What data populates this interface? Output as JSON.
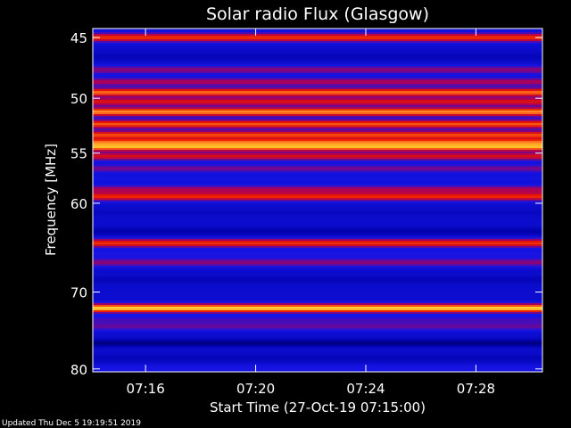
{
  "chart_data": {
    "type": "heatmap",
    "title": "Solar radio Flux (Glasgow)",
    "xlabel": "Start Time (27-Oct-19 07:15:00)",
    "ylabel": "Frequency [MHz]",
    "x_range_minutes": [
      "07:14:05",
      "07:30:25"
    ],
    "xticks": [
      "07:16",
      "07:20",
      "07:24",
      "07:28"
    ],
    "yticks": [
      "45",
      "50",
      "55",
      "60",
      "70",
      "80"
    ],
    "y_scale": "log",
    "ylim": [
      44.3,
      80.4
    ],
    "colormap": "heat (blue-red-orange-yellow-white)",
    "bands": [
      {
        "freq": 45.0,
        "level": 0.7
      },
      {
        "freq": 46.5,
        "level": 0.15
      },
      {
        "freq": 47.6,
        "level": 0.45
      },
      {
        "freq": 48.6,
        "level": 0.5
      },
      {
        "freq": 49.5,
        "level": 0.8
      },
      {
        "freq": 50.3,
        "level": 0.62
      },
      {
        "freq": 51.2,
        "level": 0.86
      },
      {
        "freq": 52.3,
        "level": 0.76
      },
      {
        "freq": 53.3,
        "level": 0.74
      },
      {
        "freq": 54.0,
        "level": 0.78
      },
      {
        "freq": 54.4,
        "level": 0.92
      },
      {
        "freq": 55.3,
        "level": 0.6
      },
      {
        "freq": 56.5,
        "level": 0.42
      },
      {
        "freq": 57.5,
        "level": 0.28
      },
      {
        "freq": 58.6,
        "level": 0.5
      },
      {
        "freq": 59.3,
        "level": 0.68
      },
      {
        "freq": 61.0,
        "level": 0.18
      },
      {
        "freq": 63.0,
        "level": 0.12
      },
      {
        "freq": 64.3,
        "level": 0.7
      },
      {
        "freq": 65.5,
        "level": 0.3
      },
      {
        "freq": 66.5,
        "level": 0.45
      },
      {
        "freq": 68.5,
        "level": 0.15
      },
      {
        "freq": 72.0,
        "level": 0.98
      },
      {
        "freq": 73.5,
        "level": 0.35
      },
      {
        "freq": 74.3,
        "level": 0.4
      },
      {
        "freq": 76.5,
        "level": 0.05
      },
      {
        "freq": 78.5,
        "level": 0.15
      },
      {
        "freq": 80.0,
        "level": 0.3
      }
    ]
  },
  "footer": "Updated Thu Dec  5 19:19:51 2019"
}
